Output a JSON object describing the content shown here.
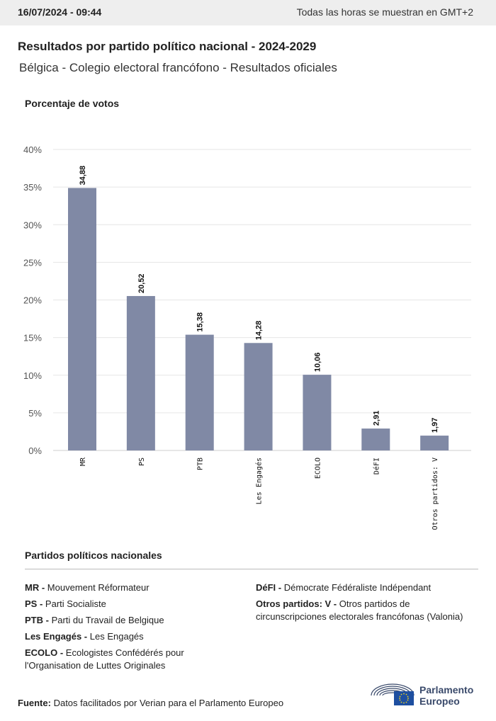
{
  "header": {
    "datetime": "16/07/2024 - 09:44",
    "timezone_note": "Todas las horas se muestran en GMT+2"
  },
  "title": "Resultados por partido político nacional - 2024-2029",
  "subtitle": "Bélgica - Colegio electoral francófono - Resultados oficiales",
  "chart_data": {
    "type": "bar",
    "ylabel": "Porcentaje de votos",
    "categories": [
      "MR",
      "PS",
      "PTB",
      "Les Engagés",
      "ECOLO",
      "DéFI",
      "Otros partidos: V"
    ],
    "values": [
      34.88,
      20.52,
      15.38,
      14.28,
      10.06,
      2.91,
      1.97
    ],
    "data_labels": [
      "34,88",
      "20,52",
      "15,38",
      "14,28",
      "10,06",
      "2,91",
      "1,97"
    ],
    "yticks": [
      0,
      5,
      10,
      15,
      20,
      25,
      30,
      35,
      40
    ],
    "ytick_labels": [
      "0%",
      "5%",
      "10%",
      "15%",
      "20%",
      "25%",
      "30%",
      "35%",
      "40%"
    ],
    "ylim": [
      0,
      40
    ],
    "bar_color": "#8089a5",
    "grid": true
  },
  "legend": {
    "title": "Partidos políticos nacionales",
    "left": [
      {
        "abbr": "MR -",
        "name": "Mouvement Réformateur"
      },
      {
        "abbr": "PS -",
        "name": "Parti Socialiste"
      },
      {
        "abbr": "PTB -",
        "name": "Parti du Travail de Belgique"
      },
      {
        "abbr": "Les Engagés -",
        "name": "Les Engagés"
      },
      {
        "abbr": "ECOLO -",
        "name": "Ecologistes Confédérés pour l'Organisation de Luttes Originales"
      }
    ],
    "right": [
      {
        "abbr": "DéFI -",
        "name": "Démocrate Fédéraliste Indépendant"
      },
      {
        "abbr": "Otros partidos: V -",
        "name": "Otros partidos de circunscripciones electorales francófonas (Valonia)"
      }
    ]
  },
  "source": {
    "label": "Fuente:",
    "text": "Datos facilitados por Verian para el Parlamento Europeo"
  },
  "logo": {
    "line1": "Parlamento",
    "line2": "Europeo",
    "icon": "european-parliament-logo-icon"
  },
  "colors": {
    "accent": "#3a4a6b",
    "topbar_bg": "#eeeeee"
  }
}
